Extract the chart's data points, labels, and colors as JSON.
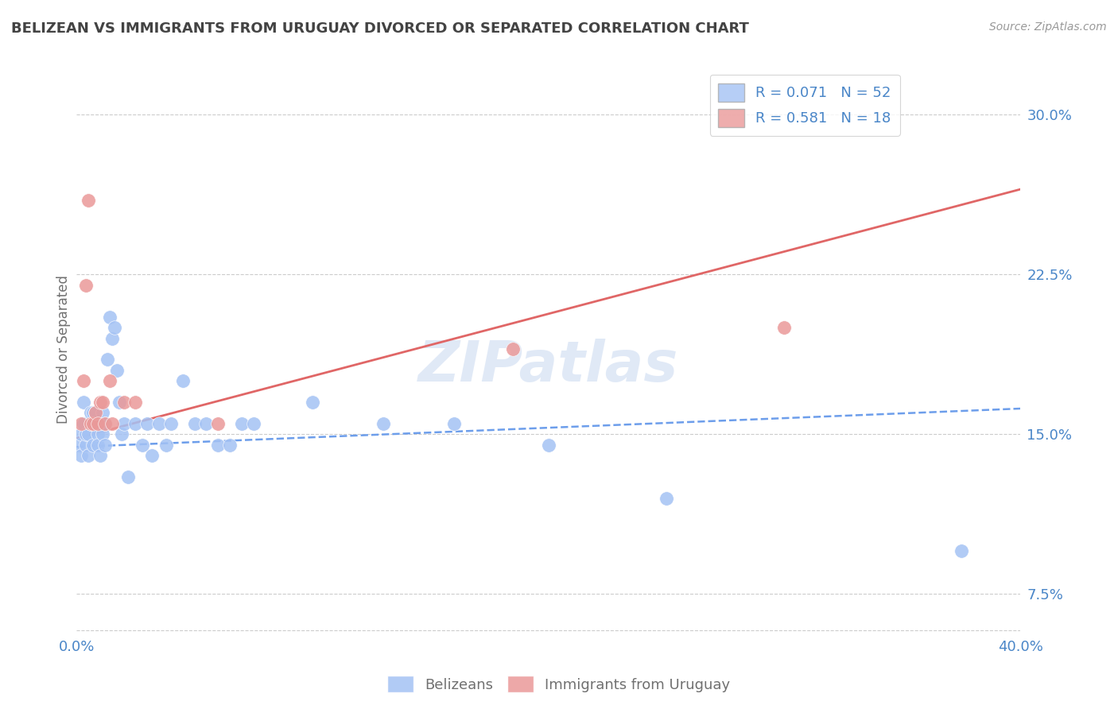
{
  "title": "BELIZEAN VS IMMIGRANTS FROM URUGUAY DIVORCED OR SEPARATED CORRELATION CHART",
  "source": "Source: ZipAtlas.com",
  "ylabel": "Divorced or Separated",
  "xlim": [
    0.0,
    0.4
  ],
  "ylim": [
    0.055,
    0.325
  ],
  "yticks": [
    0.075,
    0.15,
    0.225,
    0.3
  ],
  "ytick_labels": [
    "7.5%",
    "15.0%",
    "22.5%",
    "30.0%"
  ],
  "xtick_labels": [
    "0.0%",
    "40.0%"
  ],
  "xtick_vals": [
    0.0,
    0.4
  ],
  "belizean_R": 0.071,
  "belizean_N": 52,
  "uruguay_R": 0.581,
  "uruguay_N": 18,
  "blue_color": "#a4c2f4",
  "pink_color": "#ea9999",
  "blue_line_color": "#6d9eeb",
  "pink_line_color": "#e06666",
  "background_color": "#ffffff",
  "grid_color": "#cccccc",
  "title_color": "#434343",
  "source_color": "#999999",
  "legend_label_blue": "Belizeans",
  "legend_label_pink": "Immigrants from Uruguay",
  "watermark": "ZIPatlas",
  "blue_trend_start_y": 0.144,
  "blue_trend_end_y": 0.162,
  "pink_trend_start_y": 0.148,
  "pink_trend_end_y": 0.265,
  "belizean_x": [
    0.001,
    0.002,
    0.002,
    0.003,
    0.003,
    0.004,
    0.004,
    0.005,
    0.005,
    0.006,
    0.006,
    0.007,
    0.007,
    0.008,
    0.008,
    0.009,
    0.009,
    0.01,
    0.01,
    0.011,
    0.011,
    0.012,
    0.012,
    0.013,
    0.014,
    0.015,
    0.016,
    0.017,
    0.018,
    0.019,
    0.02,
    0.022,
    0.025,
    0.028,
    0.03,
    0.032,
    0.035,
    0.038,
    0.04,
    0.045,
    0.05,
    0.055,
    0.06,
    0.065,
    0.07,
    0.075,
    0.1,
    0.13,
    0.16,
    0.2,
    0.25,
    0.375
  ],
  "belizean_y": [
    0.145,
    0.14,
    0.15,
    0.155,
    0.165,
    0.145,
    0.15,
    0.14,
    0.15,
    0.155,
    0.16,
    0.145,
    0.16,
    0.155,
    0.16,
    0.15,
    0.145,
    0.14,
    0.155,
    0.15,
    0.16,
    0.145,
    0.155,
    0.185,
    0.205,
    0.195,
    0.2,
    0.18,
    0.165,
    0.15,
    0.155,
    0.13,
    0.155,
    0.145,
    0.155,
    0.14,
    0.155,
    0.145,
    0.155,
    0.175,
    0.155,
    0.155,
    0.145,
    0.145,
    0.155,
    0.155,
    0.165,
    0.155,
    0.155,
    0.145,
    0.12,
    0.095
  ],
  "uruguay_x": [
    0.002,
    0.003,
    0.004,
    0.005,
    0.006,
    0.007,
    0.008,
    0.009,
    0.01,
    0.011,
    0.012,
    0.014,
    0.015,
    0.02,
    0.025,
    0.06,
    0.185,
    0.3
  ],
  "uruguay_y": [
    0.155,
    0.175,
    0.22,
    0.26,
    0.155,
    0.155,
    0.16,
    0.155,
    0.165,
    0.165,
    0.155,
    0.175,
    0.155,
    0.165,
    0.165,
    0.155,
    0.19,
    0.2
  ]
}
